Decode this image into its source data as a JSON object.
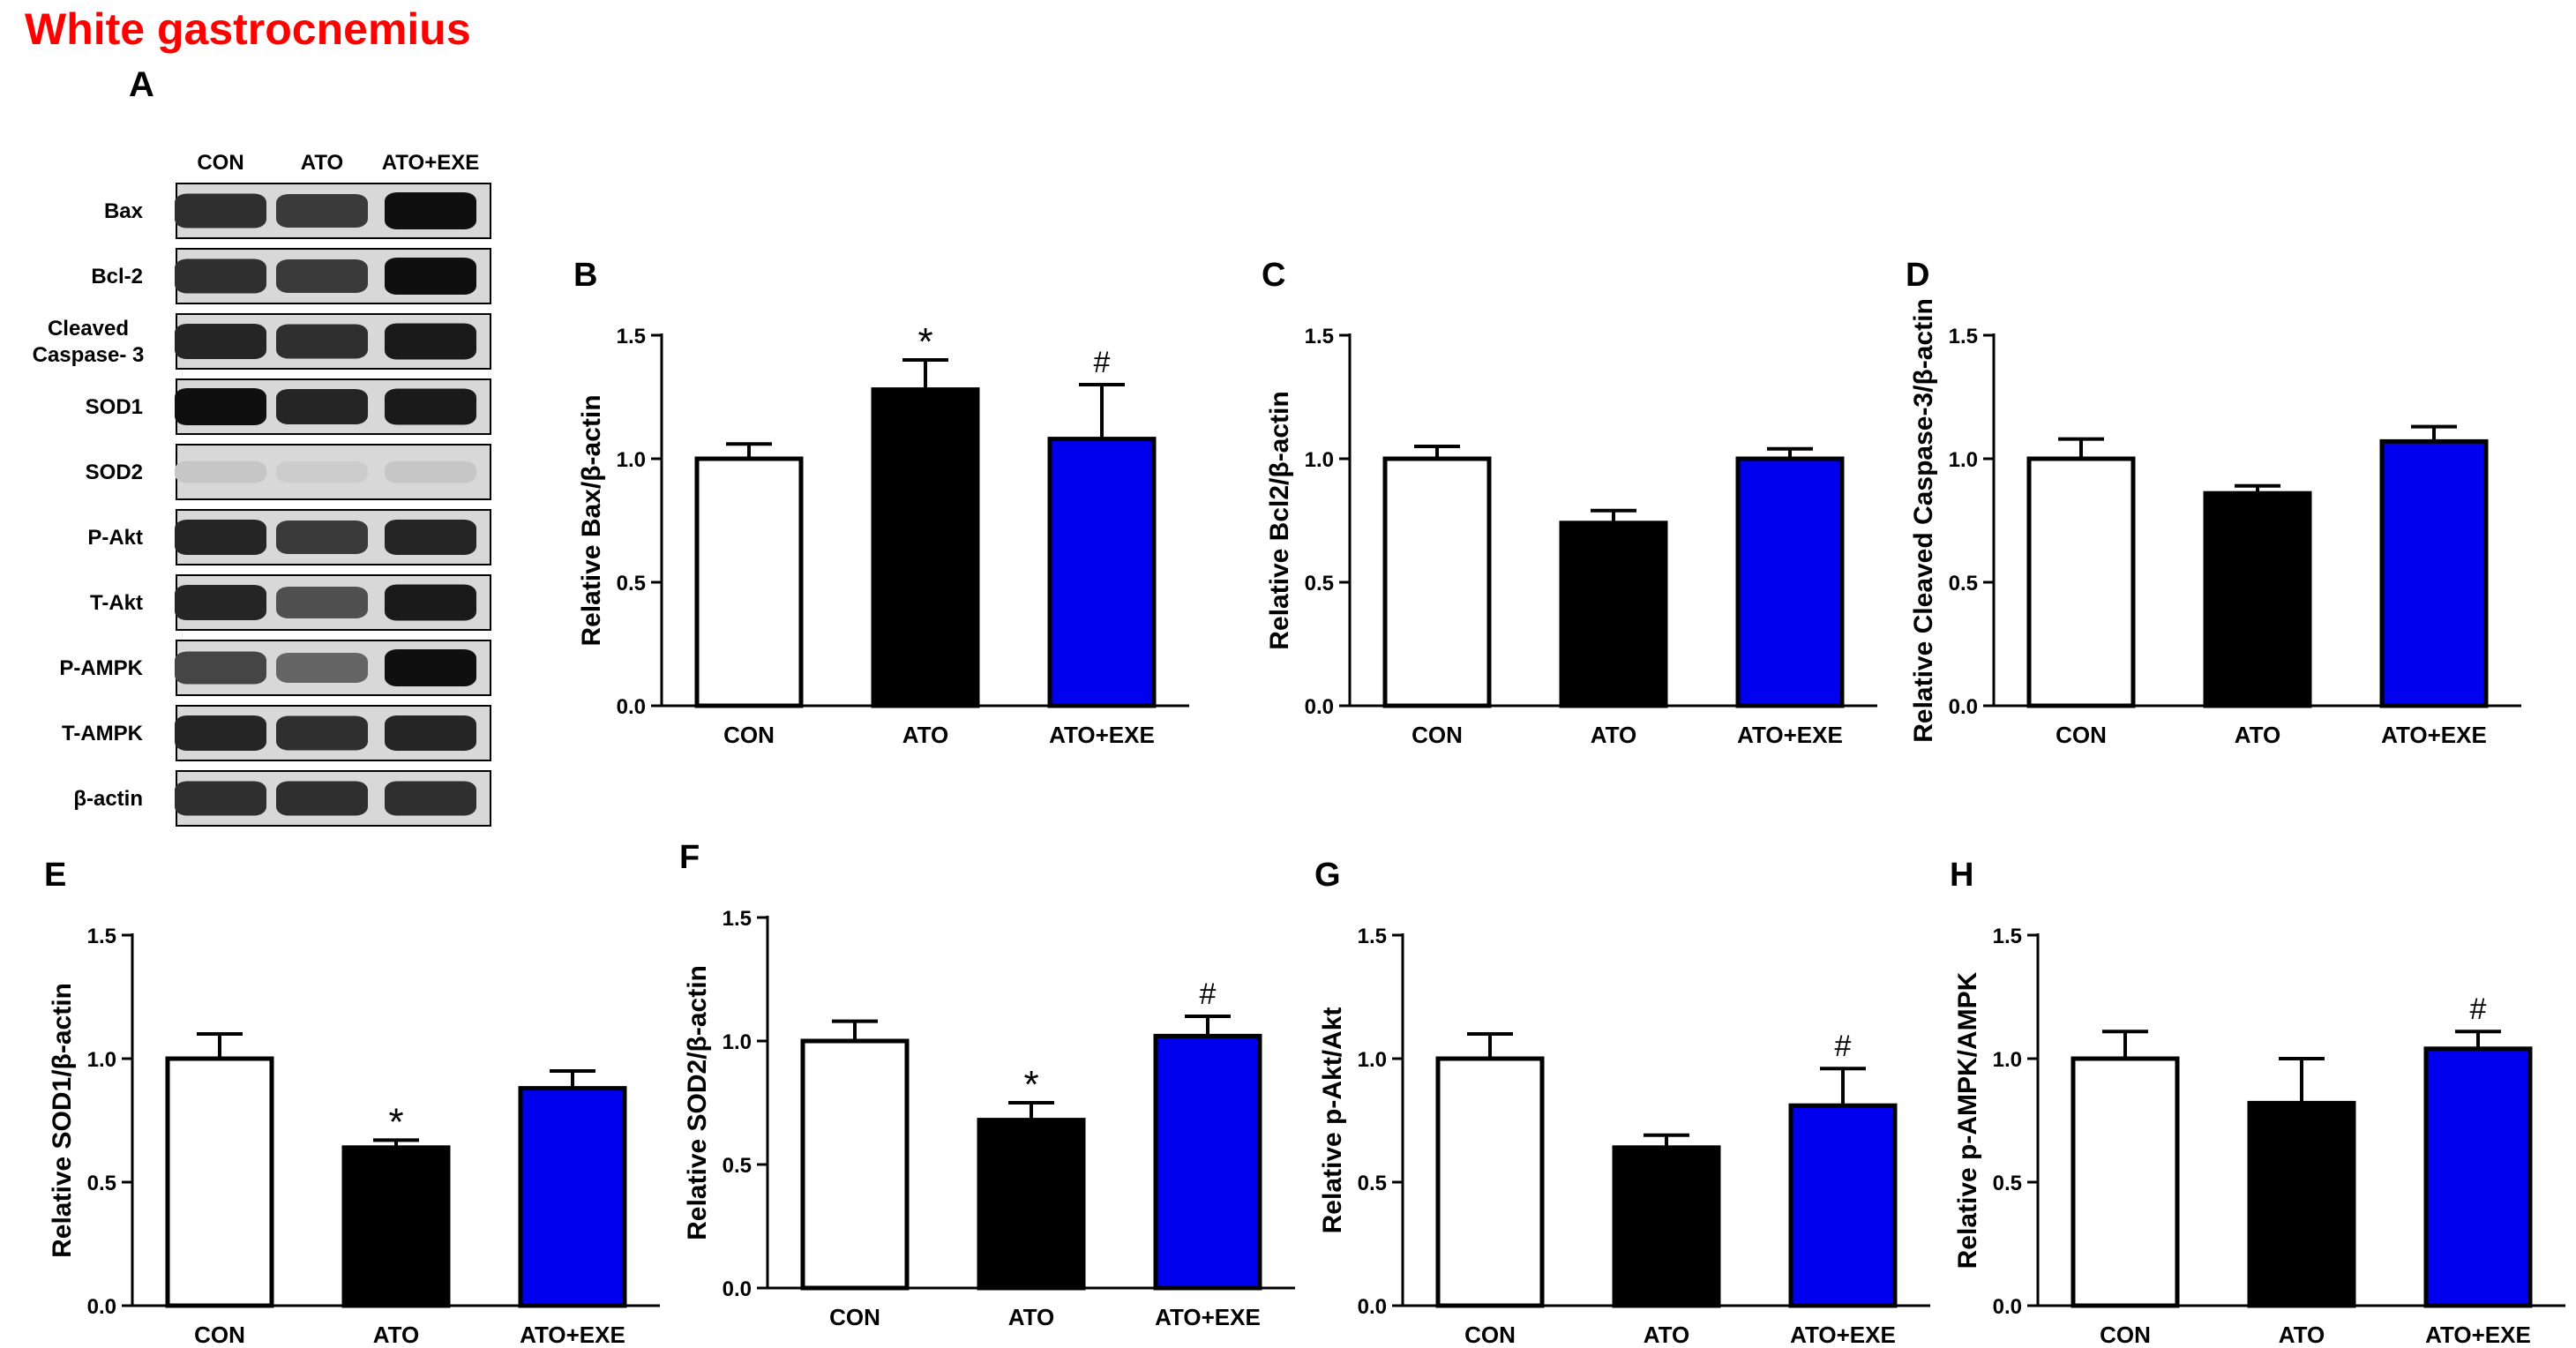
{
  "page": {
    "title": "White gastrocnemius",
    "title_color": "#ff0000"
  },
  "blot": {
    "panel_letter": "A",
    "columns": [
      "CON",
      "ATO",
      "ATO+EXE"
    ],
    "rows": [
      {
        "label": "Bax",
        "strength": [
          0.85,
          0.8,
          1.0
        ]
      },
      {
        "label": "Bcl-2",
        "strength": [
          0.85,
          0.8,
          1.0
        ]
      },
      {
        "label": [
          "Cleaved",
          "Caspase- 3"
        ],
        "strength": [
          0.9,
          0.85,
          0.95
        ]
      },
      {
        "label": "SOD1",
        "strength": [
          1.0,
          0.9,
          0.95
        ]
      },
      {
        "label": "SOD2",
        "strength": [
          0.15,
          0.12,
          0.15
        ]
      },
      {
        "label": "P-Akt",
        "strength": [
          0.9,
          0.8,
          0.9
        ]
      },
      {
        "label": "T-Akt",
        "strength": [
          0.9,
          0.7,
          0.95
        ]
      },
      {
        "label": "P-AMPK",
        "strength": [
          0.75,
          0.6,
          1.0
        ]
      },
      {
        "label": "T-AMPK",
        "strength": [
          0.9,
          0.85,
          0.9
        ]
      },
      {
        "label": "β-actin",
        "strength": [
          0.85,
          0.85,
          0.85
        ]
      }
    ]
  },
  "colors": {
    "con": "#ffffff",
    "ato": "#000000",
    "exe": "#0000ee",
    "axis": "#000000"
  },
  "chart_data": [
    {
      "panel": "B",
      "type": "bar",
      "ylabel": "Relative Bax/β-actin",
      "categories": [
        "CON",
        "ATO",
        "ATO+EXE"
      ],
      "values": [
        1.0,
        1.28,
        1.08
      ],
      "errors": [
        0.06,
        0.12,
        0.22
      ],
      "marks": [
        "",
        "*",
        "#"
      ],
      "ylim": [
        0,
        1.5
      ],
      "yticks": [
        "0.0",
        "0.5",
        "1.0",
        "1.5"
      ]
    },
    {
      "panel": "C",
      "type": "bar",
      "ylabel": "Relative Bcl2/β-actin",
      "categories": [
        "CON",
        "ATO",
        "ATO+EXE"
      ],
      "values": [
        1.0,
        0.74,
        1.0
      ],
      "errors": [
        0.05,
        0.05,
        0.04
      ],
      "marks": [
        "",
        "",
        ""
      ],
      "ylim": [
        0,
        1.5
      ],
      "yticks": [
        "0.0",
        "0.5",
        "1.0",
        "1.5"
      ]
    },
    {
      "panel": "D",
      "type": "bar",
      "ylabel": "Relative Cleaved Caspase-3/β-actin",
      "categories": [
        "CON",
        "ATO",
        "ATO+EXE"
      ],
      "values": [
        1.0,
        0.86,
        1.07
      ],
      "errors": [
        0.08,
        0.03,
        0.06
      ],
      "marks": [
        "",
        "",
        ""
      ],
      "ylim": [
        0,
        1.5
      ],
      "yticks": [
        "0.0",
        "0.5",
        "1.0",
        "1.5"
      ]
    },
    {
      "panel": "E",
      "type": "bar",
      "ylabel": "Relative SOD1/β-actin",
      "categories": [
        "CON",
        "ATO",
        "ATO+EXE"
      ],
      "values": [
        1.0,
        0.64,
        0.88
      ],
      "errors": [
        0.1,
        0.03,
        0.07
      ],
      "marks": [
        "",
        "*",
        ""
      ],
      "ylim": [
        0,
        1.5
      ],
      "yticks": [
        "0.0",
        "0.5",
        "1.0",
        "1.5"
      ]
    },
    {
      "panel": "F",
      "type": "bar",
      "ylabel": "Relative SOD2/β-actin",
      "categories": [
        "CON",
        "ATO",
        "ATO+EXE"
      ],
      "values": [
        1.0,
        0.68,
        1.02
      ],
      "errors": [
        0.08,
        0.07,
        0.08
      ],
      "marks": [
        "",
        "*",
        "#"
      ],
      "ylim": [
        0,
        1.5
      ],
      "yticks": [
        "0.0",
        "0.5",
        "1.0",
        "1.5"
      ]
    },
    {
      "panel": "G",
      "type": "bar",
      "ylabel": "Relative p-Akt/Akt",
      "categories": [
        "CON",
        "ATO",
        "ATO+EXE"
      ],
      "values": [
        1.0,
        0.64,
        0.81
      ],
      "errors": [
        0.1,
        0.05,
        0.15
      ],
      "marks": [
        "",
        "",
        "#"
      ],
      "ylim": [
        0,
        1.5
      ],
      "yticks": [
        "0.0",
        "0.5",
        "1.0",
        "1.5"
      ]
    },
    {
      "panel": "H",
      "type": "bar",
      "ylabel": "Relative p-AMPK/AMPK",
      "categories": [
        "CON",
        "ATO",
        "ATO+EXE"
      ],
      "values": [
        1.0,
        0.82,
        1.04
      ],
      "errors": [
        0.11,
        0.18,
        0.07
      ],
      "marks": [
        "",
        "",
        "#"
      ],
      "ylim": [
        0,
        1.5
      ],
      "yticks": [
        "0.0",
        "0.5",
        "1.0",
        "1.5"
      ]
    }
  ]
}
